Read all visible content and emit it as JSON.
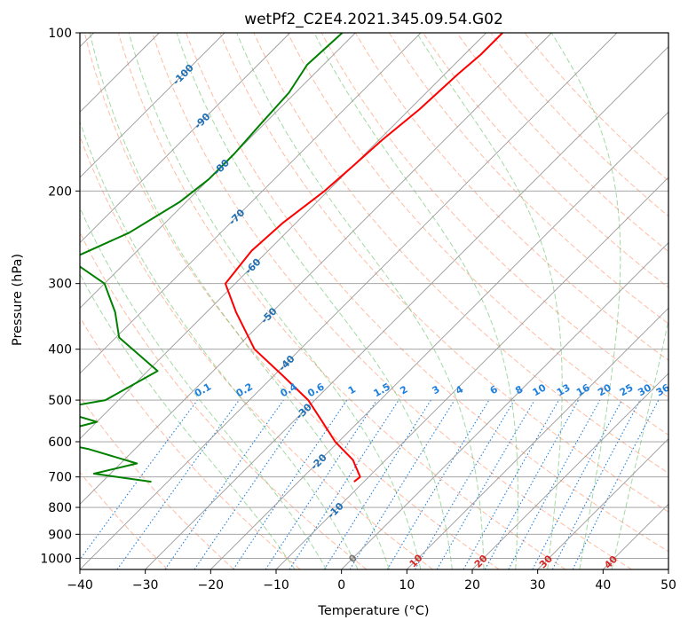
{
  "chart_data": {
    "type": "line",
    "title": "wetPf2_C2E4.2021.345.09.54.G02",
    "xlabel": "Temperature (°C)",
    "ylabel": "Pressure (hPa)",
    "xlim": [
      -40,
      50
    ],
    "ylim": [
      1050,
      100
    ],
    "y_scale": "log",
    "grid": true,
    "xticks": [
      -40,
      -30,
      -20,
      -10,
      0,
      10,
      20,
      30,
      40,
      50
    ],
    "yticks": [
      100,
      200,
      300,
      400,
      500,
      600,
      700,
      800,
      900,
      1000
    ],
    "series": [
      {
        "role": "temperature",
        "color": "#ff0000",
        "points": [
          [
            100,
            -57.5
          ],
          [
            110,
            -57.5
          ],
          [
            120,
            -58.0
          ],
          [
            140,
            -58.5
          ],
          [
            160,
            -59.5
          ],
          [
            180,
            -60.0
          ],
          [
            200,
            -60.5
          ],
          [
            230,
            -62.0
          ],
          [
            260,
            -62.5
          ],
          [
            300,
            -61.5
          ],
          [
            340,
            -55.5
          ],
          [
            400,
            -47.0
          ],
          [
            450,
            -38.5
          ],
          [
            500,
            -31.0
          ],
          [
            550,
            -25.5
          ],
          [
            600,
            -20.5
          ],
          [
            650,
            -15.0
          ],
          [
            700,
            -11.3
          ],
          [
            715,
            -11.5
          ]
        ]
      },
      {
        "role": "dewpoint",
        "color": "#008000",
        "points": [
          [
            100,
            -82.0
          ],
          [
            115,
            -82.5
          ],
          [
            130,
            -81.0
          ],
          [
            150,
            -80.5
          ],
          [
            170,
            -80.0
          ],
          [
            190,
            -80.0
          ],
          [
            210,
            -81.0
          ],
          [
            240,
            -84.0
          ],
          [
            270,
            -89.0
          ],
          [
            300,
            -80.0
          ],
          [
            340,
            -74.0
          ],
          [
            380,
            -69.5
          ],
          [
            440,
            -58.5
          ],
          [
            500,
            -62.0
          ],
          [
            520,
            -68.5
          ],
          [
            550,
            -60.0
          ],
          [
            590,
            -67.0
          ],
          [
            620,
            -57.0
          ],
          [
            660,
            -47.5
          ],
          [
            690,
            -52.5
          ],
          [
            715,
            -42.5
          ]
        ]
      }
    ],
    "dry_adiabats": [
      -30,
      -20,
      -10,
      0,
      10,
      20,
      30,
      40,
      50,
      60,
      70,
      80,
      90,
      100,
      110,
      120,
      130,
      140,
      150
    ],
    "moist_adiabats": [
      -10,
      -5,
      0,
      5,
      10,
      15,
      20,
      25,
      30,
      35,
      40
    ],
    "mixing_ratio_lines": [
      {
        "w": 0.1,
        "label": "0.1"
      },
      {
        "w": 0.2,
        "label": "0.2"
      },
      {
        "w": 0.4,
        "label": "0.4"
      },
      {
        "w": 0.6,
        "label": "0.6"
      },
      {
        "w": 1,
        "label": "1"
      },
      {
        "w": 1.5,
        "label": "1.5"
      },
      {
        "w": 2,
        "label": "2"
      },
      {
        "w": 3,
        "label": "3"
      },
      {
        "w": 4,
        "label": "4"
      },
      {
        "w": 6,
        "label": "6"
      },
      {
        "w": 8,
        "label": "8"
      },
      {
        "w": 10,
        "label": "10"
      },
      {
        "w": 13,
        "label": "13"
      },
      {
        "w": 16,
        "label": "16"
      },
      {
        "w": 20,
        "label": "20"
      },
      {
        "w": 25,
        "label": "25"
      },
      {
        "w": 30,
        "label": "30"
      },
      {
        "w": 36,
        "label": "36"
      }
    ],
    "blue_isotherm_labels": [
      {
        "t": -100,
        "p": 120
      },
      {
        "t": -90,
        "p": 147
      },
      {
        "t": -80,
        "p": 180
      },
      {
        "t": -70,
        "p": 224
      },
      {
        "t": -60,
        "p": 278
      },
      {
        "t": -50,
        "p": 345
      },
      {
        "t": -40,
        "p": 425
      },
      {
        "t": -30,
        "p": 525
      },
      {
        "t": -20,
        "p": 655
      },
      {
        "t": -10,
        "p": 810
      }
    ],
    "gray_isotherm_labels": [
      {
        "t": 0,
        "p": 1000
      }
    ],
    "red_isotherm_labels": [
      {
        "t": 10,
        "p": 1010
      },
      {
        "t": 20,
        "p": 1012
      },
      {
        "t": 30,
        "p": 1014
      },
      {
        "t": 40,
        "p": 1016
      }
    ],
    "colors": {
      "temperature": "#ff0000",
      "dewpoint": "#008000",
      "dry_adiabat": "#ff6a33",
      "moist_adiabat": "#33aa33",
      "mixing_ratio": "#1e7fdc",
      "isotherm": "#999999",
      "blue_label": "#1f6fb5",
      "red_label": "#d62728",
      "gray_label": "#777777"
    }
  }
}
